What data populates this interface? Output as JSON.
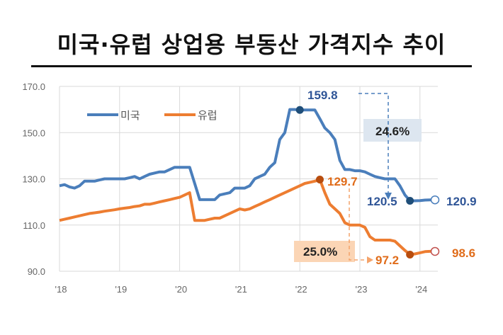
{
  "title": "미국·유럽 상업용 부동산 가격지수 추이",
  "chart_data": {
    "type": "line",
    "title": "미국·유럽 상업용 부동산 가격지수 추이",
    "xlabel": "",
    "ylabel": "",
    "ylim": [
      90,
      170
    ],
    "yticks": [
      "170.0",
      "150.0",
      "130.0",
      "110.0",
      "90.0"
    ],
    "ytick_values": [
      170,
      150,
      130,
      110,
      90
    ],
    "xticks": [
      "'18",
      "'19",
      "'20",
      "'21",
      "'22",
      "'23",
      "'24"
    ],
    "xtick_values": [
      2018,
      2019,
      2020,
      2021,
      2022,
      2023,
      2024
    ],
    "x_start": "2018-01",
    "x_frequency": "monthly",
    "grid": true,
    "legend": "top-left",
    "series": [
      {
        "name": "미국",
        "color": "#4a7ebb",
        "values": [
          127,
          127.5,
          126.5,
          126,
          127,
          129,
          129,
          129,
          129.5,
          130,
          130,
          130,
          130,
          130,
          130.5,
          131,
          130,
          131,
          132,
          132.5,
          133,
          133,
          134,
          135,
          135,
          135,
          135,
          128,
          121,
          121,
          121,
          121,
          123,
          123.5,
          124,
          126,
          126,
          126,
          127,
          130,
          131,
          132,
          135,
          137,
          147,
          150,
          160,
          160,
          159.8,
          159.8,
          159.8,
          159.8,
          156,
          152,
          150,
          147,
          138,
          134,
          134,
          133.5,
          133.5,
          133,
          132,
          131,
          130.5,
          130,
          130,
          130,
          127,
          123,
          120.5,
          120.5,
          120.6,
          120.8,
          120.9,
          120.9
        ]
      },
      {
        "name": "유럽",
        "color": "#ed7d31",
        "values": [
          112,
          112.5,
          113,
          113.5,
          114,
          114.5,
          115,
          115.3,
          115.6,
          116,
          116.3,
          116.6,
          117,
          117.3,
          117.6,
          118,
          118.3,
          119,
          119,
          119.5,
          120,
          120.5,
          121,
          121.5,
          122,
          123,
          124,
          112,
          112,
          112,
          112.5,
          113,
          113,
          114,
          115,
          116,
          117,
          116.5,
          117,
          118,
          119,
          120,
          121,
          122,
          123,
          124,
          125,
          126,
          127,
          128,
          128.5,
          129,
          129.7,
          124,
          119,
          117,
          115,
          111,
          110,
          110,
          110,
          109,
          105,
          103.5,
          103.5,
          103.5,
          103.5,
          103,
          101,
          99,
          97.2,
          97.5,
          98,
          98.5,
          98.6,
          98.6
        ]
      }
    ],
    "annotations": {
      "us_peak": "159.8",
      "us_trough": "120.5",
      "us_latest": "120.9",
      "us_decline": "24.6%",
      "eu_peak": "129.7",
      "eu_trough": "97.2",
      "eu_latest": "98.6",
      "eu_decline": "25.0%"
    },
    "annotation_colors": {
      "us_box": "#dde6f0",
      "eu_box": "#fbd5b5",
      "us_text": "#2f5597",
      "eu_text": "#e06c1a"
    }
  }
}
